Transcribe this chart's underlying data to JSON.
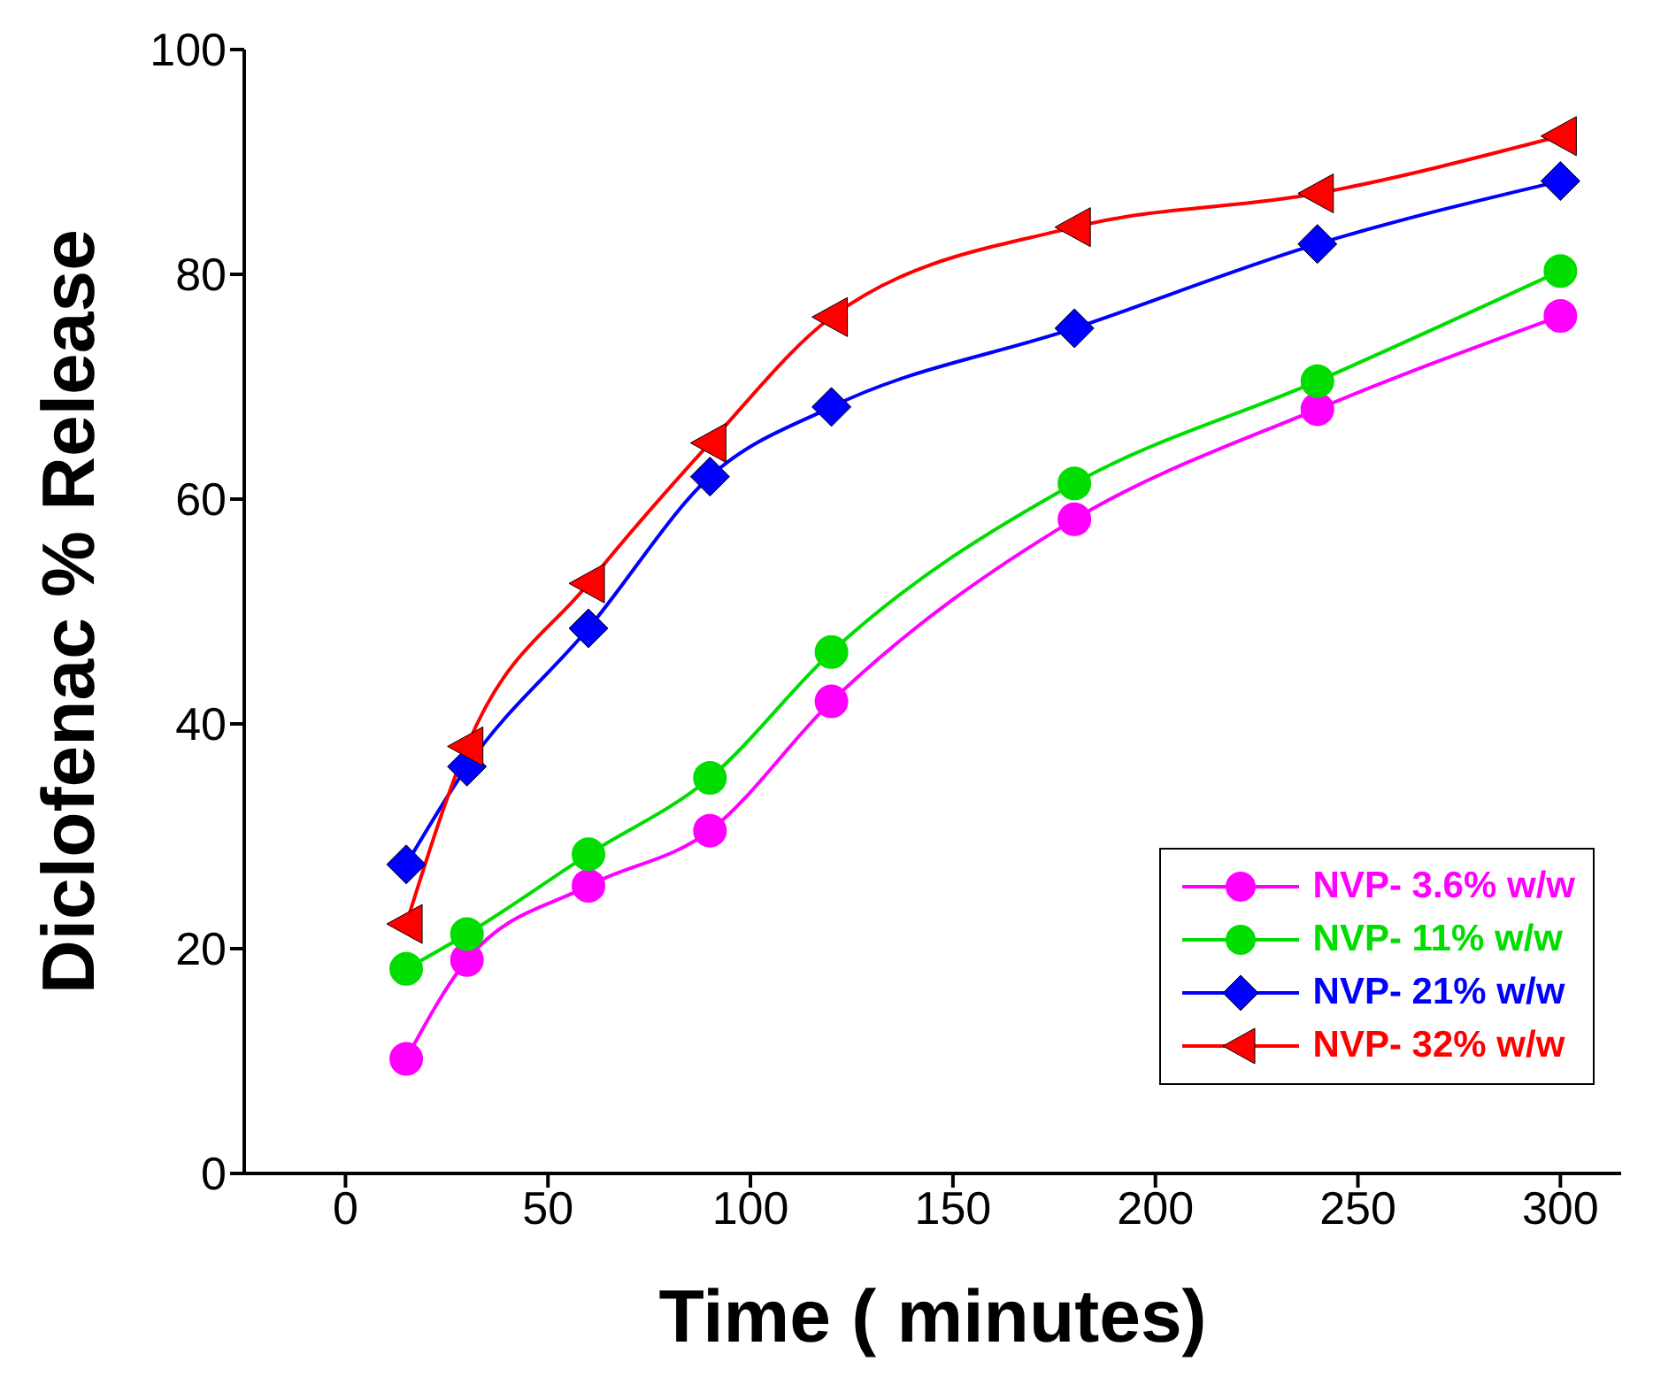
{
  "chart_data": {
    "type": "line",
    "xlabel": "Time ( minutes)",
    "ylabel": "Diclofenac % Release",
    "x": [
      15,
      30,
      60,
      90,
      120,
      180,
      240,
      300
    ],
    "xlim": [
      -25,
      315
    ],
    "xticks": [
      0,
      50,
      100,
      150,
      200,
      250,
      300
    ],
    "ylim": [
      0,
      100
    ],
    "yticks": [
      0,
      20,
      40,
      60,
      80,
      100
    ],
    "grid": false,
    "legend": "bottom right",
    "line_style": "solid",
    "series": [
      {
        "name": "NVP- 3.6% w/w",
        "color": "#ff00ff",
        "marker": "circle",
        "values": [
          10.2,
          19,
          25.6,
          30.5,
          42,
          58.2,
          68,
          76.3
        ]
      },
      {
        "name": "NVP- 11% w/w",
        "color": "#00dd00",
        "marker": "circle",
        "values": [
          18.2,
          21.3,
          28.4,
          35.2,
          46.4,
          61.4,
          70.5,
          80.3
        ]
      },
      {
        "name": "NVP- 21% w/w",
        "color": "#0000ff",
        "marker": "diamond",
        "values": [
          27.5,
          36.2,
          48.5,
          62,
          68.2,
          75.2,
          82.7,
          88.3
        ]
      },
      {
        "name": "NVP- 32% w/w",
        "color": "#ff0000",
        "marker": "triangle",
        "values": [
          22.2,
          38,
          52.5,
          65,
          76.2,
          84.2,
          87.2,
          92.3
        ]
      }
    ]
  }
}
